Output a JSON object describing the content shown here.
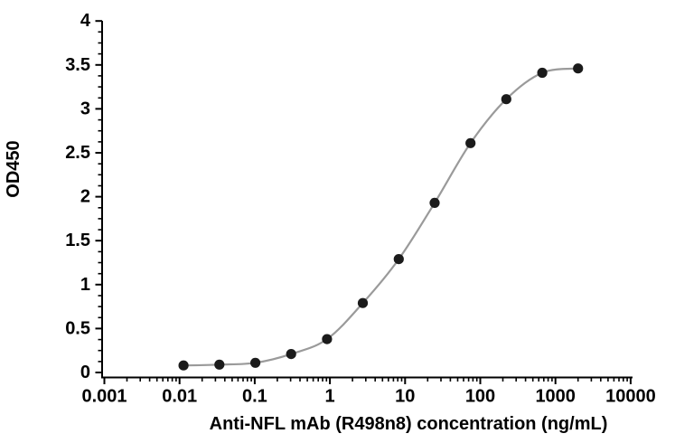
{
  "chart_data": {
    "type": "scatter",
    "title": "",
    "xlabel": "Anti-NFL mAb (R498n8) concentration (ng/mL)",
    "ylabel": "OD450",
    "x_scale": "log",
    "xlim": [
      0.001,
      10000
    ],
    "ylim": [
      0,
      4
    ],
    "x_ticks": [
      0.001,
      0.01,
      0.1,
      1,
      10,
      100,
      1000,
      10000
    ],
    "x_tick_labels": [
      "0.001",
      "0.01",
      "0.1",
      "1",
      "10",
      "100",
      "1000",
      "10000"
    ],
    "x_minor_ticks": "log-2-to-9",
    "y_ticks": [
      0,
      0.5,
      1,
      1.5,
      2,
      2.5,
      3,
      3.5,
      4
    ],
    "y_tick_labels": [
      "0",
      "0.5",
      "1",
      "1.5",
      "2",
      "2.5",
      "3",
      "3.5",
      "4"
    ],
    "y_minor_step": 0.125,
    "grid": false,
    "legend": "none",
    "series": [
      {
        "name": "Anti-NFL mAb (R498n8)",
        "x": [
          0.0113,
          0.0339,
          0.102,
          0.305,
          0.915,
          2.74,
          8.23,
          24.7,
          74.1,
          222.2,
          666.7,
          2000
        ],
        "y": [
          0.08,
          0.09,
          0.11,
          0.21,
          0.38,
          0.79,
          1.29,
          1.93,
          2.61,
          3.11,
          3.41,
          3.46
        ],
        "line_color": "#9a9a9a",
        "marker_color": "#1b1b1b",
        "marker_radius": 5.6,
        "line_width": 2.2
      }
    ],
    "colors": {
      "axis": "#000000",
      "text": "#000000",
      "background": "#ffffff"
    }
  }
}
